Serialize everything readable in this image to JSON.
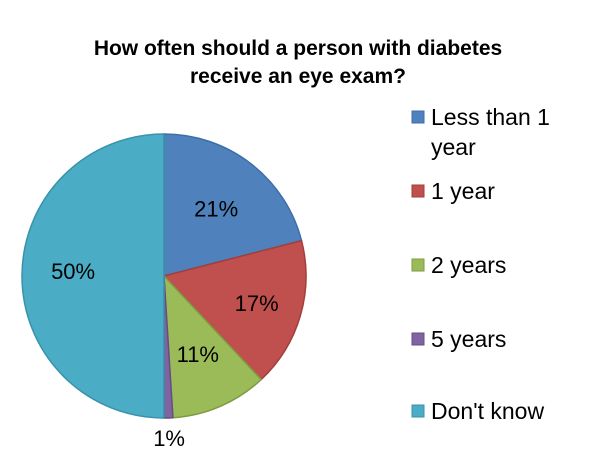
{
  "chart_data": {
    "type": "pie",
    "title": [
      "How often should a person with diabetes",
      "receive an eye exam?"
    ],
    "legend_position": "right",
    "slices": [
      {
        "label": "Less than 1 year",
        "legend_lines": [
          "Less than 1",
          "year"
        ],
        "value": 21,
        "display": "21%",
        "color": "#4F81BD",
        "stroke": "#3E6EA8"
      },
      {
        "label": "1 year",
        "legend_lines": [
          "1 year"
        ],
        "value": 17,
        "display": "17%",
        "color": "#C0504D",
        "stroke": "#A23E3B"
      },
      {
        "label": "2 years",
        "legend_lines": [
          "2 years"
        ],
        "value": 11,
        "display": "11%",
        "color": "#9BBB59",
        "stroke": "#7E9B42"
      },
      {
        "label": "5 years",
        "legend_lines": [
          "5 years"
        ],
        "value": 1,
        "display": "1%",
        "color": "#8064A2",
        "stroke": "#654D85"
      },
      {
        "label": "Don't know",
        "legend_lines": [
          "Don't know"
        ],
        "value": 50,
        "display": "50%",
        "color": "#4BACC6",
        "stroke": "#3792AA"
      }
    ]
  }
}
